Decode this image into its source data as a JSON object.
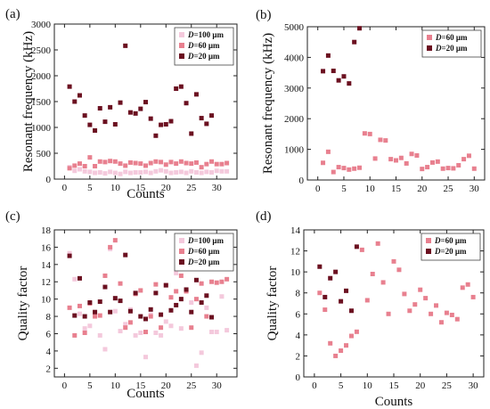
{
  "colors": {
    "d100": "#f4c9dc",
    "d60": "#e8808f",
    "d20": "#6b1020",
    "axis": "#222222",
    "legend_border": "#444444"
  },
  "chart_data": [
    {
      "panel": "(a)",
      "type": "scatter",
      "xlabel": "Counts",
      "ylabel": "Resonant frequency (kHz)",
      "xlim": [
        -2,
        34
      ],
      "ylim": [
        0,
        3000
      ],
      "xticks": [
        0,
        5,
        10,
        15,
        20,
        25,
        30
      ],
      "yticks": [
        0,
        500,
        1000,
        1500,
        2000,
        2500,
        3000
      ],
      "legend_position": "top-right",
      "series": [
        {
          "name_prefix": "D",
          "name_suffix": "=100 μm",
          "color_key": "d100",
          "x": [
            1,
            2,
            3,
            4,
            5,
            6,
            7,
            8,
            9,
            10,
            11,
            12,
            13,
            14,
            15,
            16,
            17,
            18,
            19,
            20,
            21,
            22,
            23,
            24,
            25,
            26,
            27,
            28,
            29,
            30,
            31,
            32
          ],
          "y": [
            230,
            160,
            190,
            150,
            140,
            120,
            130,
            110,
            140,
            120,
            100,
            140,
            120,
            130,
            130,
            140,
            120,
            150,
            170,
            150,
            120,
            130,
            140,
            120,
            150,
            130,
            120,
            140,
            130,
            160,
            150,
            150
          ]
        },
        {
          "name_prefix": "D",
          "name_suffix": "=60 μm",
          "color_key": "d60",
          "x": [
            1,
            2,
            3,
            4,
            5,
            6,
            7,
            8,
            9,
            10,
            11,
            12,
            13,
            14,
            15,
            16,
            17,
            18,
            19,
            20,
            21,
            22,
            23,
            24,
            25,
            26,
            27,
            28,
            29,
            30,
            31,
            32
          ],
          "y": [
            210,
            260,
            300,
            250,
            420,
            250,
            340,
            330,
            350,
            340,
            300,
            260,
            320,
            310,
            300,
            260,
            310,
            340,
            330,
            280,
            330,
            300,
            340,
            310,
            300,
            320,
            230,
            290,
            340,
            290,
            290,
            310
          ]
        },
        {
          "name_prefix": "D",
          "name_suffix": "=20 μm",
          "color_key": "d20",
          "x": [
            1,
            2,
            3,
            4,
            5,
            6,
            7,
            8,
            9,
            10,
            11,
            12,
            13,
            14,
            15,
            16,
            17,
            18,
            19,
            20,
            21,
            22,
            23,
            24,
            25,
            26,
            27,
            28,
            29
          ],
          "y": [
            1790,
            1500,
            1620,
            1230,
            1050,
            940,
            1370,
            1110,
            1390,
            1060,
            1480,
            2580,
            1290,
            1270,
            1360,
            1490,
            1170,
            840,
            1050,
            1060,
            1120,
            1750,
            1790,
            1470,
            880,
            1640,
            1180,
            1070,
            1230
          ]
        }
      ]
    },
    {
      "panel": "(b)",
      "type": "scatter",
      "xlabel": "",
      "ylabel": "Resonant frequency (kHz)",
      "xlim": [
        -2,
        32
      ],
      "ylim": [
        0,
        5000
      ],
      "xticks": [
        0,
        5,
        10,
        15,
        20,
        25,
        30
      ],
      "yticks": [
        0,
        1000,
        2000,
        3000,
        4000,
        5000
      ],
      "legend_position": "top-right",
      "series": [
        {
          "name_prefix": "D",
          "name_suffix": "=60 μm",
          "color_key": "d60",
          "x": [
            1,
            2,
            3,
            4,
            5,
            6,
            7,
            8,
            9,
            10,
            11,
            12,
            13,
            14,
            15,
            16,
            17,
            18,
            19,
            20,
            21,
            22,
            23,
            24,
            25,
            26,
            27,
            28,
            29,
            30
          ],
          "y": [
            560,
            920,
            260,
            420,
            390,
            340,
            370,
            400,
            1520,
            1500,
            700,
            1310,
            1290,
            680,
            640,
            720,
            540,
            850,
            800,
            360,
            420,
            570,
            600,
            370,
            390,
            380,
            480,
            680,
            790,
            370
          ]
        },
        {
          "name_prefix": "D",
          "name_suffix": "=20 μm",
          "color_key": "d20",
          "x": [
            1,
            2,
            3,
            4,
            5,
            6,
            7,
            8
          ],
          "y": [
            3550,
            4060,
            3560,
            3250,
            3380,
            3150,
            4500,
            4950
          ]
        }
      ]
    },
    {
      "panel": "(c)",
      "type": "scatter",
      "xlabel": "Counts",
      "ylabel": "Quality factor",
      "xlim": [
        -2,
        34
      ],
      "ylim": [
        1,
        18
      ],
      "xticks": [
        0,
        5,
        10,
        15,
        20,
        25,
        30
      ],
      "yticks": [
        2,
        4,
        6,
        8,
        10,
        12,
        14,
        16,
        18
      ],
      "legend_position": "top-right",
      "series": [
        {
          "name_prefix": "D",
          "name_suffix": "=100 μm",
          "color_key": "d100",
          "x": [
            1,
            2,
            3,
            4,
            5,
            6,
            7,
            8,
            9,
            10,
            11,
            12,
            13,
            14,
            15,
            16,
            17,
            18,
            19,
            20,
            21,
            22,
            23,
            24,
            25,
            26,
            27,
            28,
            29,
            30,
            31,
            32
          ],
          "y": [
            15.3,
            12.3,
            8.3,
            6.6,
            6.9,
            8.4,
            5.8,
            4.2,
            15.8,
            8.6,
            6.3,
            7.1,
            8.8,
            5.8,
            6.1,
            3.3,
            8.2,
            6.1,
            5.8,
            7.4,
            6.9,
            13.0,
            6.6,
            11.0,
            9.6,
            2.3,
            3.8,
            9.0,
            6.2,
            6.2,
            10.3,
            6.4
          ]
        },
        {
          "name_prefix": "D",
          "name_suffix": "=60 μm",
          "color_key": "d60",
          "x": [
            1,
            2,
            3,
            4,
            5,
            6,
            7,
            8,
            9,
            10,
            11,
            12,
            13,
            14,
            15,
            16,
            17,
            18,
            19,
            20,
            21,
            22,
            23,
            24,
            25,
            26,
            27,
            28,
            29,
            30,
            31,
            32
          ],
          "y": [
            9.0,
            5.8,
            9.2,
            6.1,
            9.5,
            8.0,
            8.1,
            12.7,
            16.0,
            16.8,
            11.8,
            6.7,
            7.3,
            10.6,
            11.0,
            6.2,
            8.0,
            11.7,
            6.7,
            11.6,
            10.2,
            10.9,
            12.7,
            10.9,
            6.7,
            10.0,
            11.8,
            8.0,
            12.0,
            11.9,
            12.0,
            12.3
          ]
        },
        {
          "name_prefix": "D",
          "name_suffix": "=20 μm",
          "color_key": "d20",
          "x": [
            1,
            2,
            3,
            4,
            5,
            6,
            7,
            8,
            9,
            10,
            11,
            12,
            13,
            14,
            15,
            16,
            17,
            18,
            19,
            20,
            21,
            22,
            23,
            24,
            25,
            26,
            27,
            28,
            29
          ],
          "y": [
            15.0,
            8.1,
            12.4,
            8.0,
            9.6,
            8.5,
            9.7,
            11.4,
            8.5,
            10.1,
            9.8,
            15.1,
            8.6,
            10.7,
            8.0,
            7.7,
            8.8,
            10.7,
            8.2,
            11.6,
            8.7,
            9.3,
            10.0,
            11.1,
            8.5,
            12.2,
            9.6,
            10.4,
            7.9
          ]
        }
      ]
    },
    {
      "panel": "(d)",
      "type": "scatter",
      "xlabel": "Counts",
      "ylabel": "Quality factor",
      "xlim": [
        -2,
        32
      ],
      "ylim": [
        0,
        14
      ],
      "xticks": [
        0,
        5,
        10,
        15,
        20,
        25,
        30
      ],
      "yticks": [
        0,
        2,
        4,
        6,
        8,
        10,
        12,
        14
      ],
      "legend_position": "top-right",
      "series": [
        {
          "name_prefix": "D",
          "name_suffix": "=60 μm",
          "color_key": "d60",
          "x": [
            1,
            2,
            3,
            4,
            5,
            6,
            7,
            8,
            9,
            10,
            11,
            12,
            13,
            14,
            15,
            16,
            17,
            18,
            19,
            20,
            21,
            22,
            23,
            24,
            25,
            26,
            27,
            28,
            29,
            30
          ],
          "y": [
            8.0,
            6.4,
            3.2,
            2.0,
            2.5,
            3.0,
            3.9,
            4.3,
            12.1,
            7.3,
            9.8,
            12.7,
            9.0,
            6.0,
            11.0,
            10.2,
            7.9,
            6.3,
            6.9,
            8.3,
            7.5,
            6.0,
            6.8,
            5.2,
            6.1,
            5.9,
            5.5,
            8.5,
            8.8,
            7.6
          ]
        },
        {
          "name_prefix": "D",
          "name_suffix": "=20 μm",
          "color_key": "d20",
          "x": [
            1,
            2,
            3,
            4,
            5,
            6,
            7,
            8
          ],
          "y": [
            10.5,
            7.6,
            9.4,
            10.0,
            7.2,
            8.2,
            6.3,
            12.4
          ]
        }
      ]
    }
  ]
}
